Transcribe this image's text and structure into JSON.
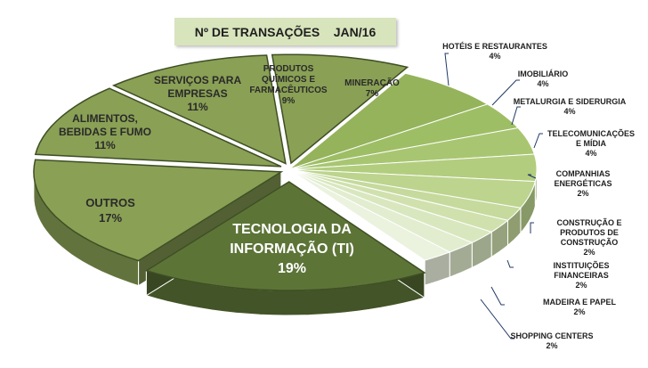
{
  "chart_data": {
    "type": "pie",
    "title": "Nº DE TRANSAÇÕES    JAN/16",
    "slices": [
      {
        "label": [
          "MINERAÇÃO"
        ],
        "value_label": "7%",
        "value": 7
      },
      {
        "label": [
          "HOTÉIS E RESTAURANTES"
        ],
        "value_label": "4%",
        "value": 4
      },
      {
        "label": [
          "IMOBILIÁRIO"
        ],
        "value_label": "4%",
        "value": 4
      },
      {
        "label": [
          "METALURGIA E SIDERURGIA"
        ],
        "value_label": "4%",
        "value": 4
      },
      {
        "label": [
          "TELECOMUNICAÇÕES",
          "E MÍDIA"
        ],
        "value_label": "4%",
        "value": 4
      },
      {
        "label": [
          "COMPANHIAS",
          "ENERGÉTICAS"
        ],
        "value_label": "2%",
        "value": 2
      },
      {
        "label": [
          "CONSTRUÇÃO E",
          "PRODUTOS DE",
          "CONSTRUÇÃO"
        ],
        "value_label": "2%",
        "value": 2
      },
      {
        "label": [
          "INSTITUIÇÕES",
          "FINANCEIRAS"
        ],
        "value_label": "2%",
        "value": 2
      },
      {
        "label": [
          "MADEIRA E PAPEL"
        ],
        "value_label": "2%",
        "value": 2
      },
      {
        "label": [
          "SHOPPING CENTERS"
        ],
        "value_label": "2%",
        "value": 2
      },
      {
        "label": [
          "TECNOLOGIA DA",
          "INFORMAÇÃO (TI)"
        ],
        "value_label": "19%",
        "value": 19
      },
      {
        "label": [
          "OUTROS"
        ],
        "value_label": "17%",
        "value": 17
      },
      {
        "label": [
          "ALIMENTOS,",
          "BEBIDAS E FUMO"
        ],
        "value_label": "11%",
        "value": 11
      },
      {
        "label": [
          "SERVIÇOS PARA",
          "EMPRESAS"
        ],
        "value_label": "11%",
        "value": 11
      },
      {
        "label": [
          "PRODUTOS",
          "QUÍMICOS E",
          "FARMACÊUTICOS"
        ],
        "value_label": "9%",
        "value": 9
      }
    ],
    "colors": {
      "main": "#8aa055",
      "large": "#5d7437",
      "small": [
        "#94b35b",
        "#9ebe65",
        "#a8c671",
        "#b2cd7e",
        "#bcd48d",
        "#c6da9d",
        "#d0e1ae",
        "#d9e7bf",
        "#e2edcf",
        "#ebf2de"
      ],
      "title_bg": "#d8e4bc",
      "border": "#ffffff",
      "separator": "#3e4f24",
      "leader": "#1f3864",
      "inside_text": "#2a2a2a",
      "te_text": "#ffffff"
    }
  }
}
